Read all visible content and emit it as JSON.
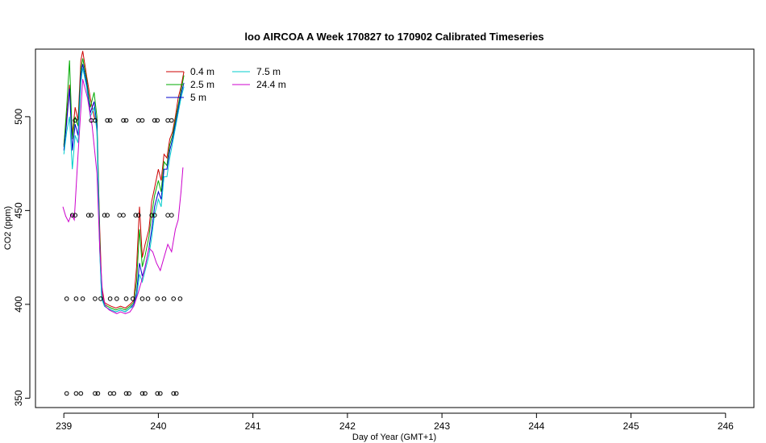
{
  "chart_data": {
    "type": "line",
    "title": "loo AIRCOA A  Week 170827 to 170902  Calibrated Timeseries",
    "xlabel": "Day of Year (GMT+1)",
    "ylabel": "CO2 (ppm)",
    "xlim": [
      238.7,
      246.3
    ],
    "ylim": [
      345,
      536
    ],
    "x_ticks": [
      239,
      240,
      241,
      242,
      243,
      244,
      245,
      246
    ],
    "y_ticks": [
      350,
      400,
      450,
      500
    ],
    "grid": false,
    "legend_position": "top-left",
    "series": [
      {
        "name": "0.4 m",
        "color": "#cc0000",
        "x": [
          239.0,
          239.03,
          239.06,
          239.09,
          239.12,
          239.15,
          239.18,
          239.2,
          239.24,
          239.28,
          239.32,
          239.35,
          239.38,
          239.4,
          239.43,
          239.46,
          239.5,
          239.55,
          239.6,
          239.65,
          239.7,
          239.74,
          239.77,
          239.8,
          239.83,
          239.86,
          239.9,
          239.93,
          239.96,
          240.0,
          240.03,
          240.06,
          240.09,
          240.12,
          240.15,
          240.18,
          240.21,
          240.24,
          240.27
        ],
        "y": [
          485,
          500,
          517,
          490,
          505,
          498,
          530,
          535,
          522,
          510,
          500,
          496,
          440,
          410,
          401,
          400,
          399,
          398,
          399,
          398,
          400,
          402,
          420,
          452,
          425,
          432,
          440,
          455,
          462,
          472,
          466,
          480,
          478,
          488,
          492,
          500,
          510,
          516,
          524
        ]
      },
      {
        "name": "2.5 m",
        "color": "#00aa00",
        "x": [
          239.0,
          239.03,
          239.06,
          239.09,
          239.12,
          239.15,
          239.18,
          239.2,
          239.24,
          239.28,
          239.32,
          239.35,
          239.38,
          239.4,
          239.43,
          239.46,
          239.5,
          239.55,
          239.6,
          239.65,
          239.7,
          239.74,
          239.77,
          239.8,
          239.83,
          239.86,
          239.9,
          239.93,
          239.96,
          240.0,
          240.03,
          240.06,
          240.09,
          240.12,
          240.15,
          240.18,
          240.21,
          240.24,
          240.27
        ],
        "y": [
          484,
          505,
          530,
          488,
          500,
          495,
          525,
          531,
          520,
          505,
          513,
          500,
          435,
          406,
          400,
          399,
          398,
          397,
          398,
          397,
          399,
          401,
          412,
          440,
          420,
          426,
          436,
          448,
          458,
          466,
          460,
          476,
          474,
          485,
          490,
          498,
          506,
          514,
          522
        ]
      },
      {
        "name": "5 m",
        "color": "#0000cc",
        "x": [
          239.0,
          239.03,
          239.06,
          239.09,
          239.12,
          239.15,
          239.18,
          239.2,
          239.24,
          239.28,
          239.32,
          239.35,
          239.38,
          239.4,
          239.43,
          239.46,
          239.5,
          239.55,
          239.6,
          239.65,
          239.7,
          239.74,
          239.77,
          239.8,
          239.83,
          239.86,
          239.9,
          239.93,
          239.96,
          240.0,
          240.03,
          240.06,
          240.09,
          240.12,
          240.15,
          240.18,
          240.21,
          240.24,
          240.27
        ],
        "y": [
          482,
          497,
          515,
          482,
          496,
          490,
          522,
          528,
          518,
          502,
          508,
          495,
          430,
          404,
          399,
          398,
          397,
          396,
          397,
          396,
          398,
          400,
          406,
          422,
          415,
          420,
          430,
          440,
          452,
          460,
          456,
          472,
          472,
          482,
          488,
          496,
          504,
          512,
          518
        ]
      },
      {
        "name": "7.5 m",
        "color": "#00cccc",
        "x": [
          239.0,
          239.03,
          239.06,
          239.09,
          239.12,
          239.15,
          239.18,
          239.2,
          239.24,
          239.28,
          239.32,
          239.35,
          239.38,
          239.4,
          239.43,
          239.46,
          239.5,
          239.55,
          239.6,
          239.65,
          239.7,
          239.74,
          239.77,
          239.8,
          239.83,
          239.86,
          239.9,
          239.93,
          239.96,
          240.0,
          240.03,
          240.06,
          240.09,
          240.12,
          240.15,
          240.18,
          240.21,
          240.24,
          240.27
        ],
        "y": [
          480,
          492,
          500,
          472,
          490,
          486,
          518,
          526,
          516,
          500,
          505,
          492,
          428,
          403,
          399,
          398,
          397,
          396,
          397,
          396,
          398,
          399,
          404,
          416,
          412,
          418,
          426,
          436,
          448,
          456,
          452,
          468,
          468,
          478,
          486,
          494,
          502,
          510,
          516
        ]
      },
      {
        "name": "24.4 m",
        "color": "#cc00cc",
        "x": [
          238.99,
          239.02,
          239.05,
          239.08,
          239.11,
          239.15,
          239.2,
          239.25,
          239.3,
          239.35,
          239.38,
          239.41,
          239.44,
          239.48,
          239.52,
          239.56,
          239.6,
          239.65,
          239.7,
          239.74,
          239.78,
          239.82,
          239.86,
          239.9,
          239.94,
          239.98,
          240.02,
          240.06,
          240.1,
          240.14,
          240.18,
          240.21,
          240.24,
          240.26
        ],
        "y": [
          452,
          447,
          444,
          448,
          445,
          480,
          520,
          510,
          495,
          470,
          430,
          405,
          399,
          397,
          396,
          395,
          396,
          395,
          396,
          399,
          405,
          412,
          420,
          430,
          428,
          422,
          418,
          425,
          432,
          428,
          440,
          445,
          460,
          473
        ]
      }
    ],
    "reference_points": [
      {
        "level": 498,
        "x": [
          239.12,
          239.29,
          239.33,
          239.46,
          239.49,
          239.63,
          239.66,
          239.79,
          239.83,
          239.96,
          239.99,
          240.1,
          240.14
        ]
      },
      {
        "level": 447.5,
        "x": [
          239.09,
          239.12,
          239.26,
          239.29,
          239.43,
          239.46,
          239.59,
          239.63,
          239.76,
          239.79,
          239.93,
          239.96,
          240.1,
          240.14
        ]
      },
      {
        "level": 403,
        "x": [
          239.03,
          239.13,
          239.2,
          239.33,
          239.39,
          239.49,
          239.56,
          239.66,
          239.73,
          239.83,
          239.89,
          239.99,
          240.06,
          240.16,
          240.23
        ]
      },
      {
        "level": 352.5,
        "x": [
          239.03,
          239.13,
          239.18,
          239.33,
          239.36,
          239.49,
          239.53,
          239.66,
          239.69,
          239.83,
          239.86,
          239.99,
          240.02,
          240.16,
          240.19
        ]
      }
    ]
  }
}
